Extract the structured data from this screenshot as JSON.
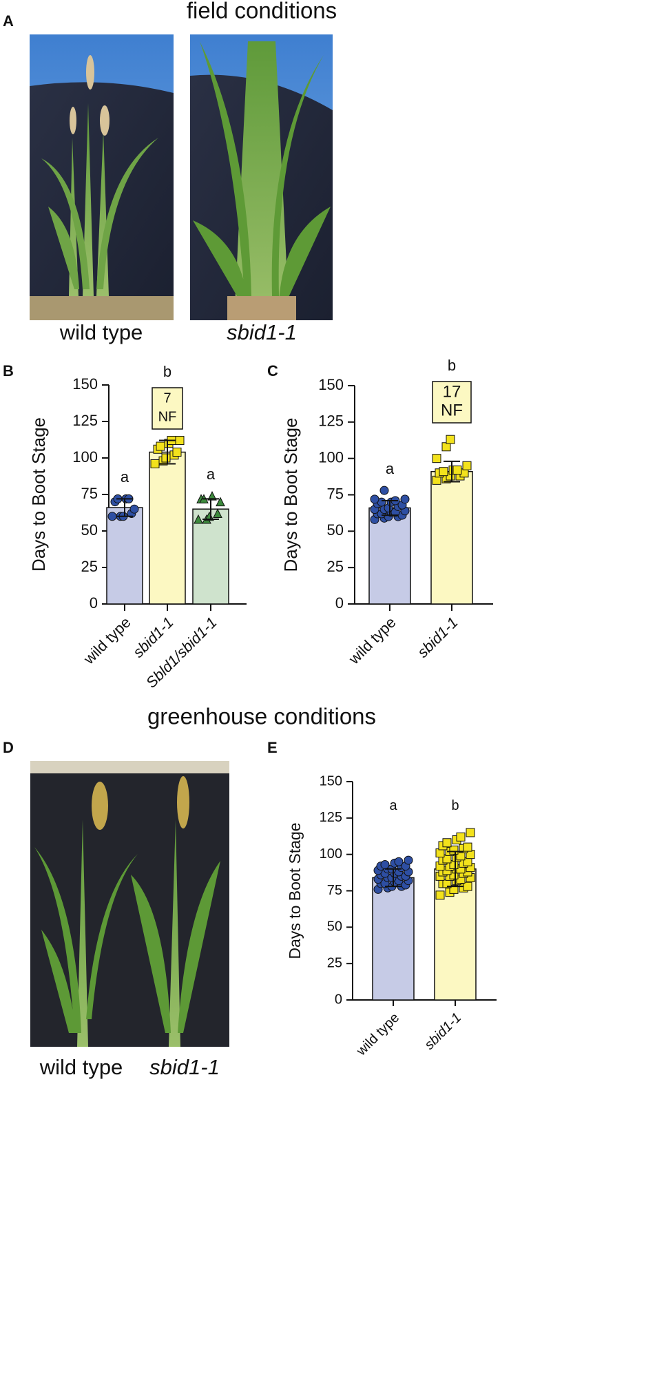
{
  "figure": {
    "title_field": "field conditions",
    "panel_a": "A",
    "photo_a_left": "wild type",
    "photo_a_right": "sbid1-1",
    "title_greenhouse": "greenhouse conditions",
    "panel_d": "D",
    "photo_d_left": "wild type",
    "photo_d_right": "sbid1-1"
  },
  "chart_data": [
    {
      "type": "bar",
      "panel": "B",
      "ylabel": "Days to Boot Stage",
      "categories": [
        "wild type",
        "sbid1-1",
        "Sbld1/sbid1-1"
      ],
      "category_styles": [
        "normal",
        "italic",
        "italic"
      ],
      "values": [
        66,
        104,
        65
      ],
      "errors": [
        6,
        8,
        7
      ],
      "colors": [
        "#c6cbe6",
        "#fcf8c2",
        "#cfe3cd"
      ],
      "point_colors": [
        "#2e4fa3",
        "#f3e21c",
        "#3d8a3d"
      ],
      "markers": [
        "circle",
        "square",
        "triangle"
      ],
      "points": [
        [
          60,
          60,
          60,
          62,
          65,
          70,
          72,
          72,
          72
        ],
        [
          96,
          98,
          100,
          102,
          104,
          106,
          108,
          110,
          112,
          112
        ],
        [
          58,
          58,
          60,
          62,
          70,
          72,
          72,
          74
        ]
      ],
      "letters": [
        "a",
        "b",
        "a"
      ],
      "boxes": [
        {
          "category": 1,
          "lines": [
            "7",
            "NF"
          ]
        }
      ],
      "ylim": [
        0,
        150
      ],
      "yticks": [
        0,
        25,
        50,
        75,
        100,
        125,
        150
      ]
    },
    {
      "type": "bar",
      "panel": "C",
      "ylabel": "Days to Boot Stage",
      "categories": [
        "wild type",
        "sbid1-1"
      ],
      "category_styles": [
        "normal",
        "italic"
      ],
      "values": [
        66,
        91
      ],
      "errors": [
        5,
        7
      ],
      "colors": [
        "#c6cbe6",
        "#fcf8c2"
      ],
      "point_colors": [
        "#2e4fa3",
        "#f3e21c"
      ],
      "markers": [
        "circle",
        "square"
      ],
      "points": [
        [
          58,
          59,
          60,
          60,
          61,
          62,
          62,
          63,
          63,
          64,
          65,
          65,
          66,
          67,
          68,
          69,
          70,
          70,
          71,
          72,
          72,
          78
        ],
        [
          85,
          86,
          88,
          88,
          90,
          90,
          91,
          92,
          92,
          95,
          100,
          108,
          113
        ]
      ],
      "letters": [
        "a",
        "b"
      ],
      "boxes": [
        {
          "category": 1,
          "lines": [
            "17",
            "NF"
          ]
        }
      ],
      "ylim": [
        0,
        150
      ],
      "yticks": [
        0,
        25,
        50,
        75,
        100,
        125,
        150
      ]
    },
    {
      "type": "bar",
      "panel": "E",
      "ylabel": "Days to Boot Stage",
      "categories": [
        "wild type",
        "sbid1-1"
      ],
      "category_styles": [
        "normal",
        "italic"
      ],
      "values": [
        84,
        90
      ],
      "errors": [
        6,
        12
      ],
      "colors": [
        "#c6cbe6",
        "#fcf8c2"
      ],
      "point_colors": [
        "#2e4fa3",
        "#f3e21c"
      ],
      "markers": [
        "circle",
        "square"
      ],
      "points": [
        [
          76,
          77,
          78,
          78,
          79,
          80,
          80,
          81,
          82,
          82,
          83,
          84,
          84,
          85,
          85,
          86,
          87,
          87,
          88,
          88,
          89,
          90,
          90,
          91,
          92,
          92,
          93,
          94,
          95,
          96
        ],
        [
          72,
          74,
          76,
          77,
          78,
          80,
          80,
          82,
          83,
          84,
          85,
          85,
          86,
          87,
          88,
          88,
          89,
          90,
          90,
          91,
          92,
          92,
          93,
          94,
          95,
          96,
          97,
          98,
          99,
          100,
          101,
          102,
          103,
          104,
          105,
          106,
          108,
          110,
          112,
          115
        ]
      ],
      "letters": [
        "a",
        "b"
      ],
      "ylim": [
        0,
        150
      ],
      "yticks": [
        0,
        25,
        50,
        75,
        100,
        125,
        150
      ]
    }
  ]
}
